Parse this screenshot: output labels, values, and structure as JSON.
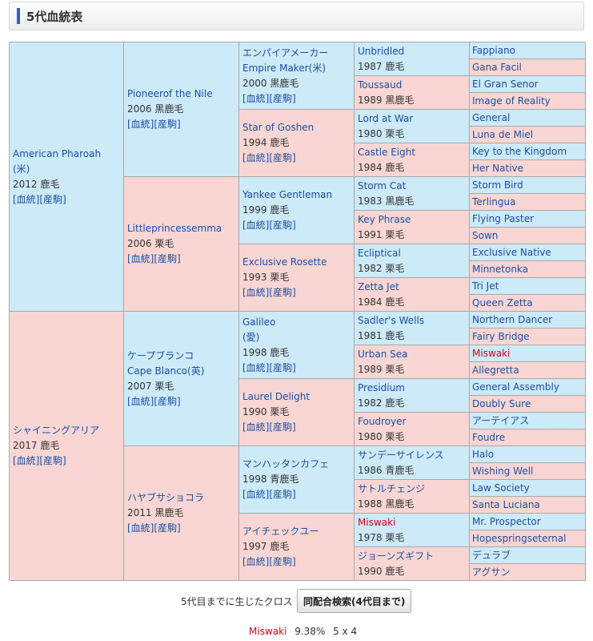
{
  "header": {
    "title": "5代血統表"
  },
  "links": {
    "pedigree": "[血統]",
    "produce": "[産駒]"
  },
  "pedigree": {
    "g1": [
      {
        "lines": [
          "American Pharoah",
          "(米)"
        ],
        "info": "2012 鹿毛",
        "links": true
      },
      {
        "lines": [
          "シャイニングアリア"
        ],
        "info": "2017 鹿毛",
        "links": true
      }
    ],
    "g2": [
      {
        "lines": [
          "Pioneerof the Nile"
        ],
        "info": "2006 黒鹿毛",
        "links": true
      },
      {
        "lines": [
          "Littleprincessemma"
        ],
        "info": "2006 栗毛",
        "links": true
      },
      {
        "lines": [
          "ケープブランコ",
          "Cape Blanco(英)"
        ],
        "info": "2007 栗毛",
        "links": true
      },
      {
        "lines": [
          "ハヤブサショコラ"
        ],
        "info": "2011 黒鹿毛",
        "links": true
      }
    ],
    "g3": [
      {
        "lines": [
          "エンパイアメーカー",
          "Empire Maker(米)"
        ],
        "info": "2000 黒鹿毛",
        "links": true
      },
      {
        "lines": [
          "Star of Goshen"
        ],
        "info": "1994 鹿毛",
        "links": true
      },
      {
        "lines": [
          "Yankee Gentleman"
        ],
        "info": "1999 鹿毛",
        "links": true
      },
      {
        "lines": [
          "Exclusive Rosette"
        ],
        "info": "1993 栗毛",
        "links": true
      },
      {
        "lines": [
          "Galileo",
          "(愛)"
        ],
        "info": "1998 鹿毛",
        "links": true
      },
      {
        "lines": [
          "Laurel Delight"
        ],
        "info": "1990 栗毛",
        "links": true
      },
      {
        "lines": [
          "マンハッタンカフェ"
        ],
        "info": "1998 青鹿毛",
        "links": true
      },
      {
        "lines": [
          "アイチェックユー"
        ],
        "info": "1997 鹿毛",
        "links": true
      }
    ],
    "g4": [
      {
        "lines": [
          "Unbridled"
        ],
        "info": "1987 鹿毛"
      },
      {
        "lines": [
          "Toussaud"
        ],
        "info": "1989 黒鹿毛"
      },
      {
        "lines": [
          "Lord at War"
        ],
        "info": "1980 栗毛"
      },
      {
        "lines": [
          "Castle Eight"
        ],
        "info": "1984 鹿毛"
      },
      {
        "lines": [
          "Storm Cat"
        ],
        "info": "1983 黒鹿毛"
      },
      {
        "lines": [
          "Key Phrase"
        ],
        "info": "1991 栗毛"
      },
      {
        "lines": [
          "Ecliptical"
        ],
        "info": "1982 栗毛"
      },
      {
        "lines": [
          "Zetta Jet"
        ],
        "info": "1984 鹿毛"
      },
      {
        "lines": [
          "Sadler's Wells"
        ],
        "info": "1981 鹿毛"
      },
      {
        "lines": [
          "Urban Sea"
        ],
        "info": "1989 栗毛"
      },
      {
        "lines": [
          "Presidium"
        ],
        "info": "1982 鹿毛"
      },
      {
        "lines": [
          "Foudroyer"
        ],
        "info": "1980 栗毛"
      },
      {
        "lines": [
          "サンデーサイレンス"
        ],
        "info": "1986 青鹿毛"
      },
      {
        "lines": [
          "サトルチェンジ"
        ],
        "info": "1988 黒鹿毛"
      },
      {
        "lines": [
          "Miswaki"
        ],
        "info": "1978 栗毛",
        "cross": true
      },
      {
        "lines": [
          "ジョーンズギフト"
        ],
        "info": "1990 鹿毛"
      }
    ],
    "g5": [
      {
        "name": "Fappiano"
      },
      {
        "name": "Gana Facil"
      },
      {
        "name": "El Gran Senor"
      },
      {
        "name": "Image of Reality"
      },
      {
        "name": "General"
      },
      {
        "name": "Luna de Miel"
      },
      {
        "name": "Key to the Kingdom"
      },
      {
        "name": "Her Native"
      },
      {
        "name": "Storm Bird"
      },
      {
        "name": "Terlingua"
      },
      {
        "name": "Flying Paster"
      },
      {
        "name": "Sown"
      },
      {
        "name": "Exclusive Native"
      },
      {
        "name": "Minnetonka"
      },
      {
        "name": "Tri Jet"
      },
      {
        "name": "Queen Zetta"
      },
      {
        "name": "Northern Dancer"
      },
      {
        "name": "Fairy Bridge"
      },
      {
        "name": "Miswaki",
        "cross": true
      },
      {
        "name": "Allegretta"
      },
      {
        "name": "General Assembly"
      },
      {
        "name": "Doubly Sure"
      },
      {
        "name": "アーテイアス"
      },
      {
        "name": "Foudre"
      },
      {
        "name": "Halo"
      },
      {
        "name": "Wishing Well"
      },
      {
        "name": "Law Society"
      },
      {
        "name": "Santa Luciana"
      },
      {
        "name": "Mr. Prospector"
      },
      {
        "name": "Hopespringseternal"
      },
      {
        "name": "デュラブ"
      },
      {
        "name": "アグサン"
      }
    ]
  },
  "cross_section": {
    "label": "5代目までに生じたクロス",
    "button": "同配合検索(4代目まで)",
    "crosses": [
      {
        "name": "Miswaki",
        "percent": "9.38%",
        "gens": "5 x 4"
      }
    ]
  },
  "colors": {
    "sire_bg": "#cdeaf8",
    "dam_bg": "#f9d6d3",
    "link": "#1a4fa3",
    "cross": "#d0021b"
  }
}
